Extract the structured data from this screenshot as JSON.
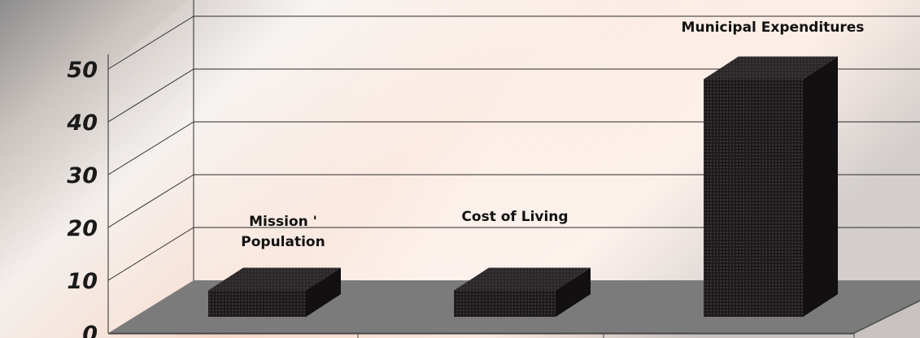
{
  "chart_data": {
    "type": "bar",
    "categories": [
      "Mission ' Population",
      "Cost of Living",
      "Municipal Expenditures"
    ],
    "label_lines": [
      [
        "Mission '",
        "Population"
      ],
      [
        "Cost of Living"
      ],
      [
        "Municipal Expenditures"
      ]
    ],
    "values": [
      5,
      5,
      45
    ],
    "ylim": [
      0,
      50
    ],
    "yticks": [
      0,
      10,
      20,
      30,
      40,
      50
    ],
    "grid": true,
    "three_d": true,
    "title": "",
    "xlabel": "",
    "ylabel": ""
  },
  "colors": {
    "bar_front": "#1e1a1c",
    "bar_top": "#2c2729",
    "bar_side": "#131012",
    "floor": "#7b7b7b",
    "gridline": "#2a2a2a",
    "tick_text": "#1a1a1a"
  }
}
